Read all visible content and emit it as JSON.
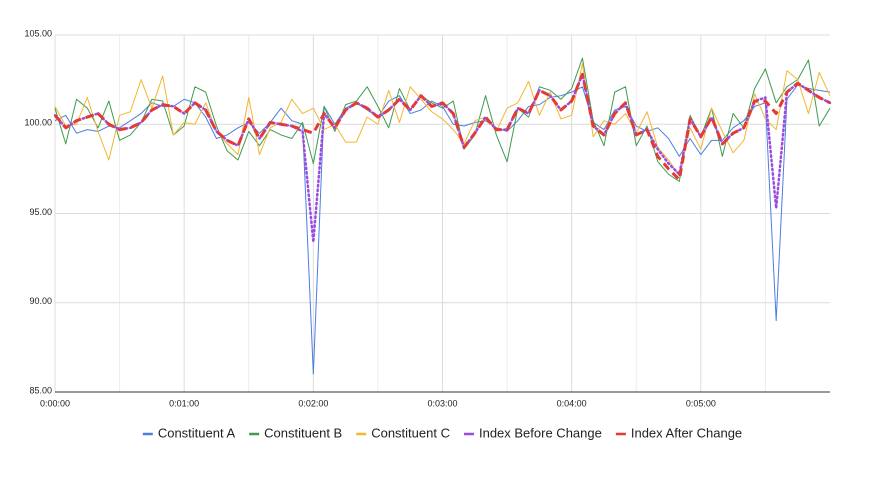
{
  "chart_data": {
    "type": "line",
    "x": [
      0,
      5,
      10,
      15,
      20,
      25,
      30,
      35,
      40,
      45,
      50,
      55,
      60,
      65,
      70,
      75,
      80,
      85,
      90,
      95,
      100,
      105,
      110,
      115,
      120,
      125,
      130,
      135,
      140,
      145,
      150,
      155,
      160,
      165,
      170,
      175,
      180,
      185,
      190,
      195,
      200,
      205,
      210,
      215,
      220,
      225,
      230,
      235,
      240,
      245,
      250,
      255,
      260,
      265,
      270,
      275,
      280,
      285,
      290,
      295,
      300,
      305,
      310,
      315,
      320,
      325,
      330,
      335,
      340,
      345,
      350,
      355,
      360
    ],
    "xlim": [
      0,
      360
    ],
    "xticks": [
      {
        "value": 0,
        "label": "0:00:00"
      },
      {
        "value": 60,
        "label": "0:01:00"
      },
      {
        "value": 120,
        "label": "0:02:00"
      },
      {
        "value": 180,
        "label": "0:03:00"
      },
      {
        "value": 240,
        "label": "0:04:00"
      },
      {
        "value": 300,
        "label": "0:05:00"
      }
    ],
    "xminor": [
      30,
      90,
      150,
      210,
      270,
      330
    ],
    "ylim": [
      85,
      105
    ],
    "yticks": [
      {
        "value": 85,
        "label": "85.00"
      },
      {
        "value": 90,
        "label": "90.00"
      },
      {
        "value": 95,
        "label": "95.00"
      },
      {
        "value": 100,
        "label": "100.00"
      },
      {
        "value": 105,
        "label": "105.00"
      }
    ],
    "grid": true,
    "legend": "bottom",
    "series": [
      {
        "name": "Constituent A",
        "color": "#4a7fe0",
        "style": "solid",
        "values": [
          100.2,
          100.5,
          99.5,
          99.7,
          99.6,
          99.9,
          99.8,
          100.2,
          100.6,
          101.2,
          101.0,
          101.0,
          101.4,
          101.2,
          100.4,
          99.2,
          99.4,
          99.8,
          100.1,
          99.5,
          100.1,
          100.9,
          100.2,
          100.0,
          86.0,
          101.0,
          100.0,
          100.9,
          101.2,
          100.8,
          100.4,
          101.3,
          101.6,
          100.6,
          100.8,
          101.3,
          101.0,
          100.0,
          99.9,
          100.1,
          100.2,
          99.8,
          99.6,
          100.2,
          101.0,
          101.1,
          101.5,
          101.6,
          101.8,
          102.1,
          100.1,
          99.7,
          100.8,
          101.0,
          99.9,
          99.6,
          99.8,
          99.2,
          98.2,
          99.2,
          98.3,
          99.1,
          99.1,
          99.8,
          100.2,
          101.0,
          101.2,
          89.0,
          101.4,
          102.2,
          102.0,
          101.9,
          101.8
        ]
      },
      {
        "name": "Constituent B",
        "color": "#3f9b4f",
        "style": "solid",
        "values": [
          100.9,
          98.9,
          101.4,
          100.9,
          99.8,
          101.3,
          99.1,
          99.4,
          100.1,
          101.4,
          101.3,
          99.4,
          99.9,
          102.1,
          101.8,
          99.9,
          98.5,
          98.0,
          99.6,
          98.8,
          99.7,
          99.4,
          99.2,
          100.1,
          97.8,
          101.0,
          99.6,
          101.1,
          101.3,
          102.1,
          101.0,
          99.8,
          102.0,
          100.8,
          101.6,
          101.2,
          100.9,
          101.3,
          98.6,
          99.4,
          101.6,
          99.4,
          97.9,
          100.9,
          100.4,
          102.1,
          101.9,
          101.4,
          102.0,
          103.7,
          100.2,
          98.8,
          101.8,
          102.1,
          98.8,
          99.9,
          97.9,
          97.2,
          96.8,
          100.5,
          99.3,
          100.9,
          98.2,
          100.6,
          99.8,
          102.0,
          103.1,
          101.2,
          102.1,
          102.5,
          103.6,
          99.9,
          100.9
        ]
      },
      {
        "name": "Constituent C",
        "color": "#f2b632",
        "style": "solid",
        "values": [
          101.0,
          99.9,
          100.0,
          101.5,
          99.6,
          98.0,
          100.5,
          100.7,
          102.5,
          100.9,
          102.7,
          99.4,
          100.1,
          100.0,
          101.2,
          99.6,
          98.9,
          98.3,
          101.5,
          98.3,
          99.8,
          100.1,
          101.4,
          100.6,
          100.9,
          99.7,
          100.0,
          99.0,
          99.0,
          100.4,
          100.0,
          101.9,
          100.1,
          102.1,
          101.4,
          100.7,
          100.3,
          99.7,
          98.9,
          100.2,
          100.4,
          99.6,
          100.9,
          101.2,
          102.4,
          100.5,
          101.8,
          100.3,
          100.5,
          103.4,
          99.3,
          100.2,
          100.0,
          100.6,
          99.5,
          100.7,
          98.7,
          98.0,
          97.1,
          99.8,
          98.6,
          100.9,
          99.6,
          98.4,
          99.1,
          101.7,
          100.3,
          99.7,
          103.0,
          102.5,
          100.6,
          102.9,
          101.6
        ]
      },
      {
        "name": "Index Before Change",
        "color": "#9b4de0",
        "style": "dotted",
        "values": [
          100.5,
          99.8,
          100.2,
          100.4,
          100.6,
          100.0,
          99.7,
          99.8,
          100.1,
          100.8,
          101.1,
          101.0,
          100.6,
          101.2,
          100.8,
          99.6,
          99.1,
          98.8,
          100.3,
          99.2,
          100.1,
          100.0,
          99.9,
          99.6,
          93.4,
          100.6,
          99.8,
          100.8,
          101.2,
          100.9,
          100.4,
          100.8,
          101.4,
          100.8,
          101.6,
          101.0,
          101.2,
          100.6,
          98.7,
          99.5,
          100.4,
          99.7,
          99.7,
          100.9,
          100.6,
          101.9,
          101.6,
          100.8,
          101.3,
          102.8,
          99.9,
          99.4,
          100.6,
          101.2,
          99.4,
          99.7,
          98.6,
          97.8,
          97.2,
          100.3,
          99.3,
          100.4,
          98.9,
          99.5,
          99.8,
          101.3,
          101.5,
          95.3,
          101.8,
          102.3,
          101.9,
          101.5,
          101.2
        ]
      },
      {
        "name": "Index After Change",
        "color": "#e53935",
        "style": "dashed",
        "values": [
          100.5,
          99.8,
          100.2,
          100.4,
          100.6,
          100.0,
          99.7,
          99.8,
          100.1,
          100.8,
          101.1,
          101.0,
          100.6,
          101.2,
          100.8,
          99.6,
          99.1,
          98.8,
          100.3,
          99.2,
          100.1,
          100.0,
          99.9,
          99.7,
          99.5,
          100.6,
          99.8,
          100.8,
          101.2,
          100.9,
          100.4,
          100.8,
          101.4,
          100.8,
          101.6,
          101.0,
          101.2,
          100.6,
          98.7,
          99.5,
          100.4,
          99.7,
          99.7,
          100.9,
          100.6,
          101.9,
          101.6,
          100.8,
          101.3,
          102.8,
          99.9,
          99.4,
          100.6,
          101.2,
          99.4,
          99.7,
          98.2,
          97.5,
          96.9,
          100.3,
          99.3,
          100.4,
          98.9,
          99.5,
          99.8,
          101.3,
          101.3,
          100.6,
          101.8,
          102.3,
          101.9,
          101.5,
          101.2
        ]
      }
    ]
  }
}
